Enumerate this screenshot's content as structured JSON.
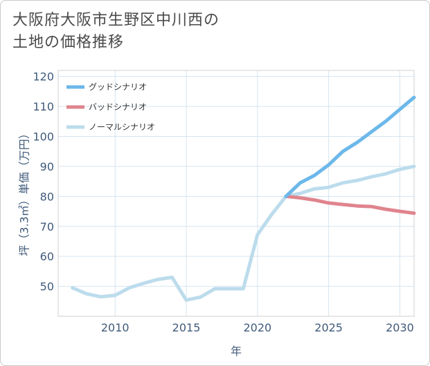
{
  "title_lines": [
    "大阪府大阪市生野区中川西の",
    "土地の価格推移"
  ],
  "chart_data": {
    "type": "line",
    "title": "大阪府大阪市生野区中川西の土地の価格推移",
    "xlabel": "年",
    "ylabel": "坪（3.3㎡）単価（万円）",
    "xlim": [
      2006,
      2031
    ],
    "ylim": [
      40,
      122
    ],
    "xticks": [
      2010,
      2015,
      2020,
      2025,
      2030
    ],
    "yticks": [
      50,
      60,
      70,
      80,
      90,
      100,
      110,
      120
    ],
    "grid": true,
    "legend_position": "top-left",
    "series": [
      {
        "name": "グッドシナリオ",
        "color": "#6cb8ea",
        "x": [
          2022,
          2023,
          2024,
          2025,
          2026,
          2027,
          2028,
          2029,
          2030,
          2031
        ],
        "y": [
          80.0,
          84.5,
          87.0,
          90.5,
          95.0,
          98.0,
          101.5,
          105.0,
          109.0,
          113.0
        ]
      },
      {
        "name": "バッドシナリオ",
        "color": "#e0848e",
        "x": [
          2022,
          2023,
          2024,
          2025,
          2026,
          2027,
          2028,
          2029,
          2030,
          2031
        ],
        "y": [
          80.0,
          79.5,
          78.8,
          77.8,
          77.3,
          76.8,
          76.6,
          75.7,
          75.0,
          74.4
        ]
      },
      {
        "name": "ノーマルシナリオ",
        "color": "#bcdcec",
        "x": [
          2007,
          2008,
          2009,
          2010,
          2011,
          2012,
          2013,
          2014,
          2015,
          2016,
          2017,
          2018,
          2019,
          2020,
          2021,
          2022,
          2023,
          2024,
          2025,
          2026,
          2027,
          2028,
          2029,
          2030,
          2031
        ],
        "y": [
          49.5,
          47.5,
          46.5,
          47.0,
          49.5,
          51.0,
          52.3,
          53.0,
          45.4,
          46.4,
          49.2,
          49.2,
          49.2,
          67.2,
          74.0,
          80.0,
          81.0,
          82.5,
          83.0,
          84.5,
          85.3,
          86.5,
          87.5,
          89.0,
          90.0
        ]
      }
    ]
  }
}
